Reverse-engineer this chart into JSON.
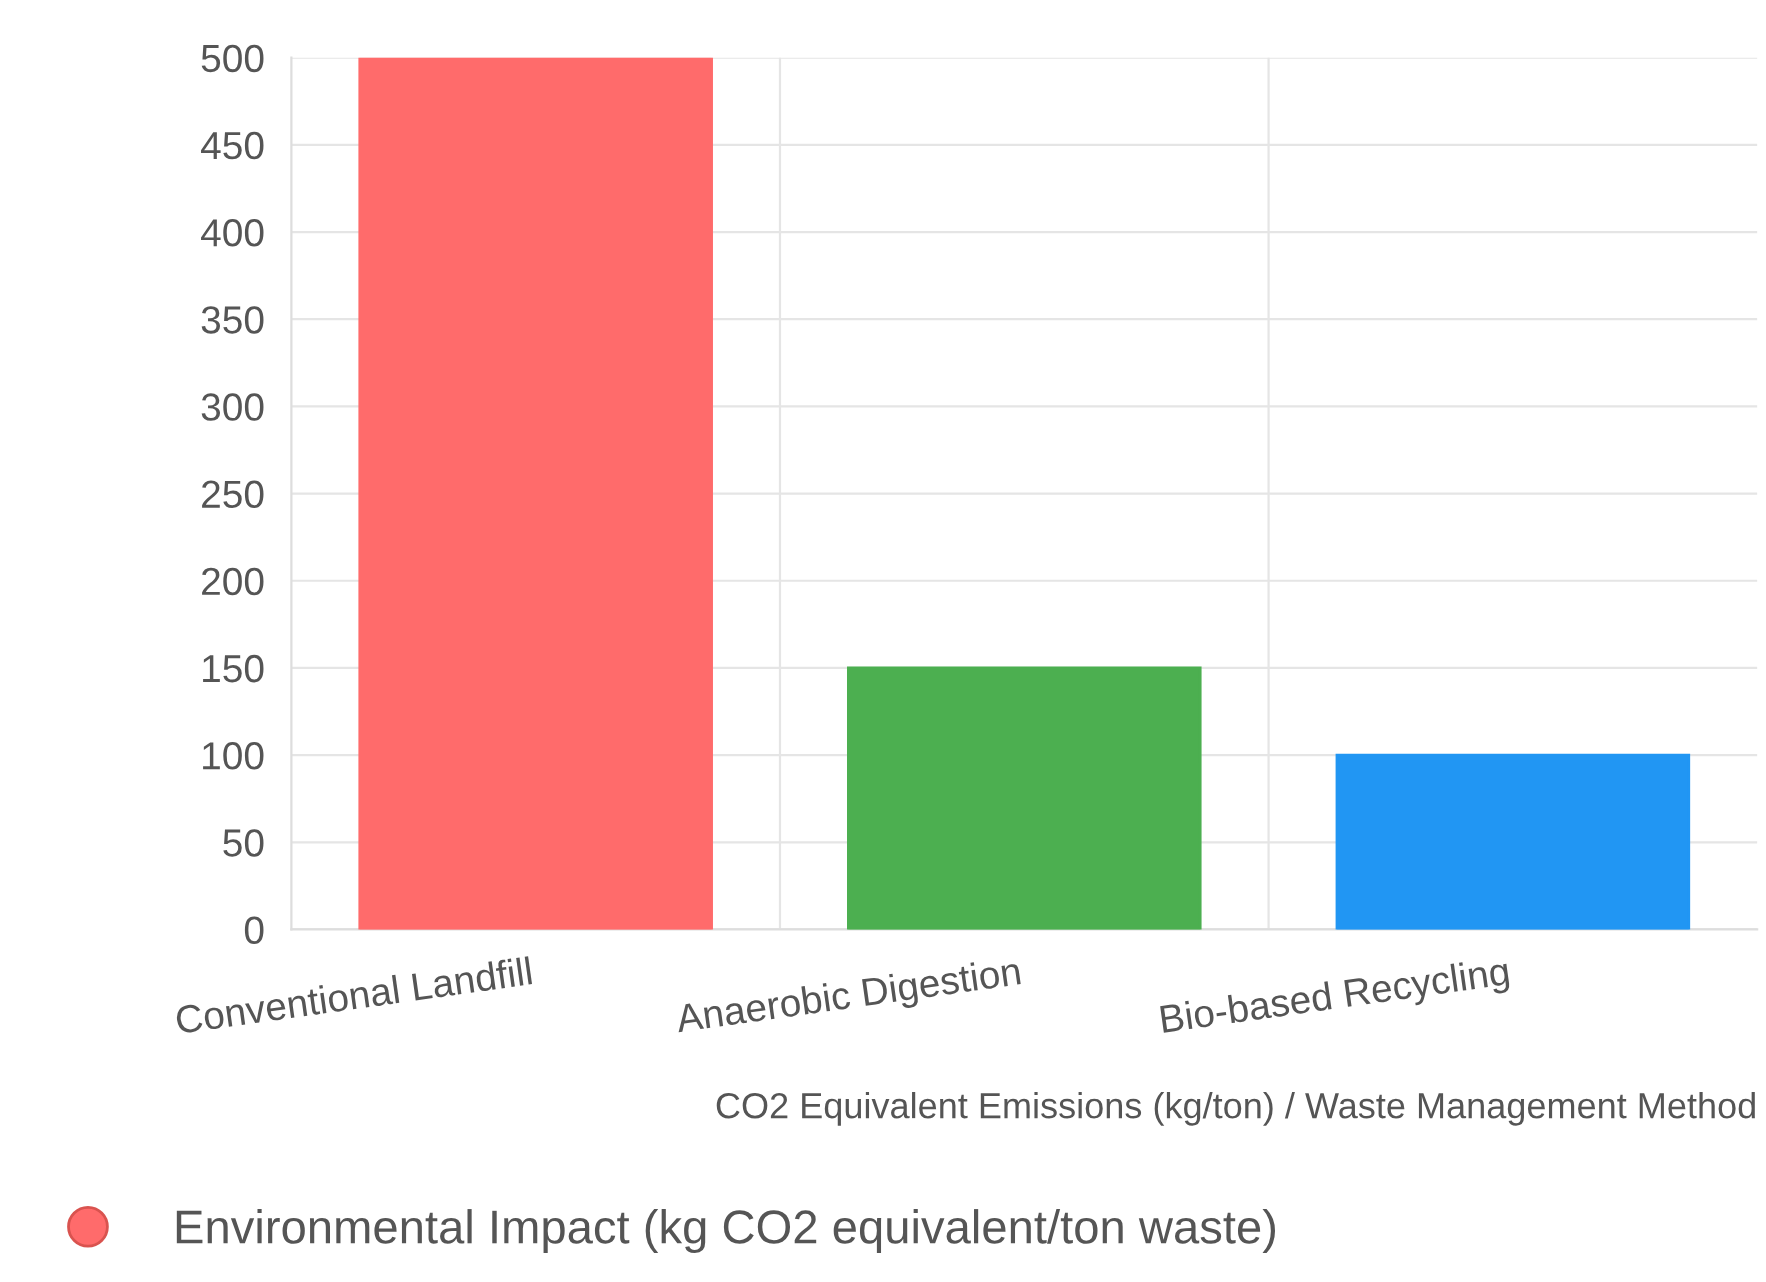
{
  "chart_data": {
    "type": "bar",
    "xlabel": "CO2 Equivalent Emissions (kg/ton) / Waste Management Method",
    "categories": [
      "Conventional Landfill",
      "Anaerobic Digestion",
      "Bio-based Recycling"
    ],
    "series": [
      {
        "name": "Environmental Impact (kg CO2 equivalent/ton waste)",
        "colors": [
          "#ff6b6b",
          "#4caf50",
          "#2196f3"
        ],
        "values": [
          500,
          150,
          100
        ]
      }
    ],
    "ylim": [
      0,
      500
    ],
    "yticks": [
      0,
      50,
      100,
      150,
      200,
      250,
      300,
      350,
      400,
      450,
      500
    ],
    "grid": true,
    "legend": "bottom",
    "marker": "circle"
  }
}
